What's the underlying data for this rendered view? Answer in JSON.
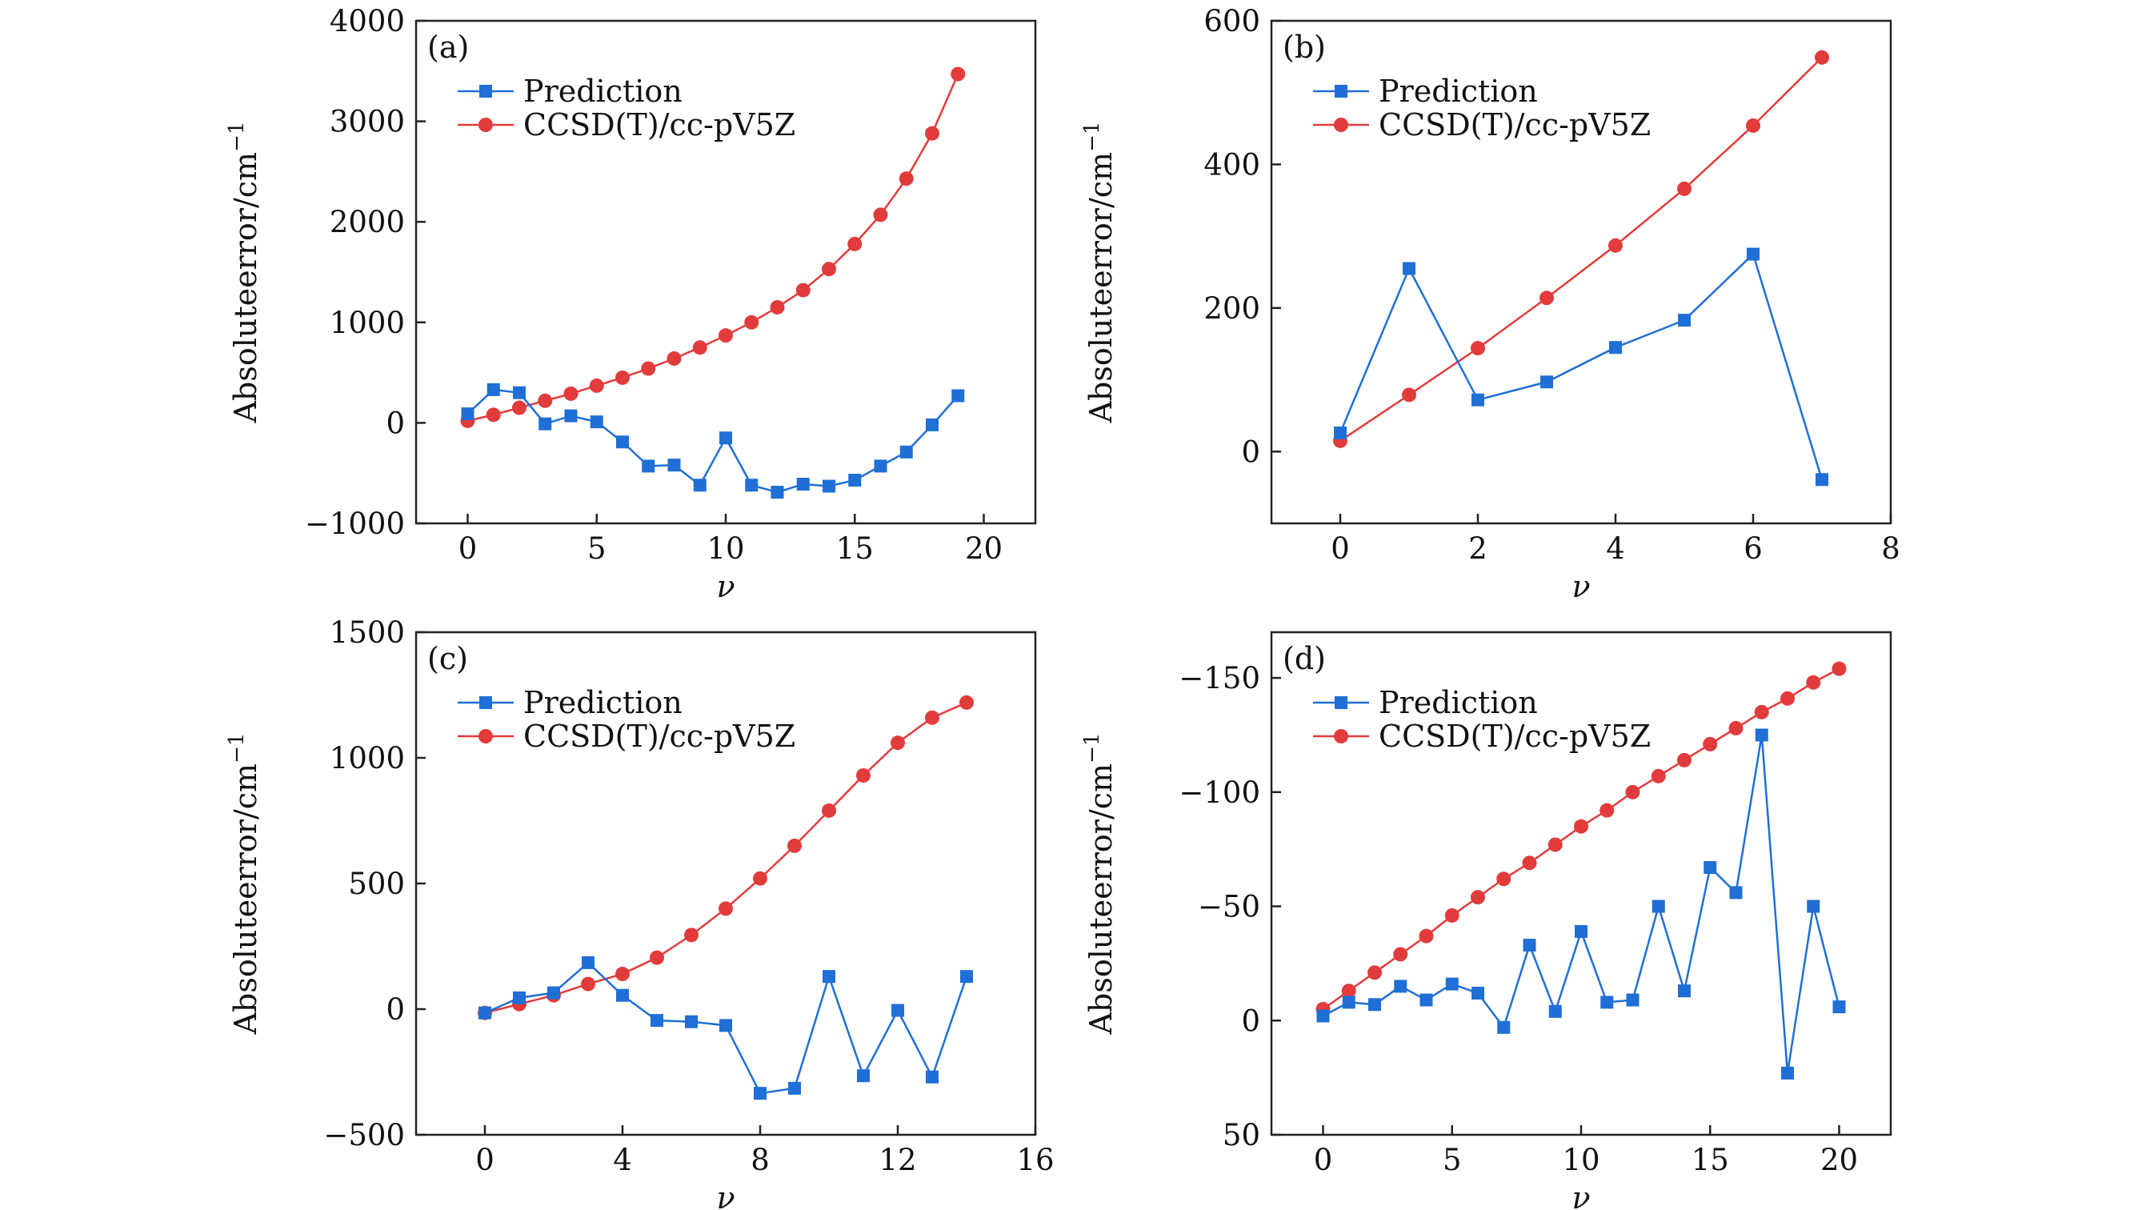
{
  "figure": {
    "colors": {
      "prediction": "#1f6fd6",
      "ccsd": "#e23b3b",
      "axis": "#222222"
    },
    "legend": {
      "prediction": "Prediction",
      "ccsd": "CCSD(T)/cc-pV5Z"
    }
  },
  "chart_data": [
    {
      "id": "a",
      "type": "line",
      "panel_label": "(a)",
      "xlabel": "ν",
      "ylabel": "Absoluteerror/cm",
      "ylabel_sup": "−1",
      "xlim": [
        -2,
        22
      ],
      "ylim": [
        -1000,
        4000
      ],
      "y_reversed": false,
      "xticks": [
        0,
        5,
        10,
        15,
        20
      ],
      "xtick_labels": [
        "0",
        "5",
        "10",
        "15",
        "20"
      ],
      "yticks": [
        -1000,
        0,
        1000,
        2000,
        3000,
        4000
      ],
      "ytick_labels": [
        "−1000",
        "0",
        "1000",
        "2000",
        "3000",
        "4000"
      ],
      "series": [
        {
          "name": "Prediction",
          "marker": "square",
          "x": [
            0,
            1,
            2,
            3,
            4,
            5,
            6,
            7,
            8,
            9,
            10,
            11,
            12,
            13,
            14,
            15,
            16,
            17,
            18,
            19
          ],
          "values": [
            90,
            330,
            300,
            -10,
            70,
            10,
            -190,
            -430,
            -420,
            -620,
            -150,
            -620,
            -690,
            -610,
            -630,
            -570,
            -430,
            -290,
            -20,
            270
          ]
        },
        {
          "name": "CCSD(T)/cc-pV5Z",
          "marker": "circle",
          "x": [
            0,
            1,
            2,
            3,
            4,
            5,
            6,
            7,
            8,
            9,
            10,
            11,
            12,
            13,
            14,
            15,
            16,
            17,
            18,
            19
          ],
          "values": [
            20,
            80,
            150,
            220,
            290,
            370,
            450,
            540,
            640,
            750,
            870,
            1000,
            1150,
            1320,
            1530,
            1780,
            2070,
            2430,
            2880,
            3470
          ]
        }
      ]
    },
    {
      "id": "b",
      "type": "line",
      "panel_label": "(b)",
      "xlabel": "ν",
      "ylabel": "Absoluteerror/cm",
      "ylabel_sup": "−1",
      "xlim": [
        -1,
        8
      ],
      "ylim": [
        -100,
        600
      ],
      "y_reversed": false,
      "xticks": [
        0,
        2,
        4,
        6,
        8
      ],
      "xtick_labels": [
        "0",
        "2",
        "4",
        "6",
        "8"
      ],
      "yticks": [
        0,
        200,
        400,
        600
      ],
      "ytick_labels": [
        "0",
        "200",
        "400",
        "600"
      ],
      "series": [
        {
          "name": "Prediction",
          "marker": "square",
          "x": [
            0,
            1,
            2,
            3,
            4,
            5,
            6,
            7
          ],
          "values": [
            26,
            255,
            72,
            97,
            145,
            183,
            275,
            -39
          ]
        },
        {
          "name": "CCSD(T)/cc-pV5Z",
          "marker": "circle",
          "x": [
            0,
            1,
            2,
            3,
            4,
            5,
            6,
            7
          ],
          "values": [
            15,
            79,
            144,
            214,
            287,
            366,
            454,
            549
          ]
        }
      ]
    },
    {
      "id": "c",
      "type": "line",
      "panel_label": "(c)",
      "xlabel": "ν",
      "ylabel": "Absoluteerror/cm",
      "ylabel_sup": "−1",
      "xlim": [
        -2,
        16
      ],
      "ylim": [
        -500,
        1500
      ],
      "y_reversed": false,
      "xticks": [
        0,
        4,
        8,
        12,
        16
      ],
      "xtick_labels": [
        "0",
        "4",
        "8",
        "12",
        "16"
      ],
      "yticks": [
        -500,
        0,
        500,
        1000,
        1500
      ],
      "ytick_labels": [
        "−500",
        "0",
        "500",
        "1000",
        "1500"
      ],
      "series": [
        {
          "name": "Prediction",
          "marker": "square",
          "x": [
            0,
            1,
            2,
            3,
            4,
            5,
            6,
            7,
            8,
            9,
            10,
            11,
            12,
            13,
            14
          ],
          "values": [
            -15,
            45,
            65,
            185,
            55,
            -45,
            -50,
            -65,
            -335,
            -315,
            130,
            -265,
            -5,
            -270,
            130
          ]
        },
        {
          "name": "CCSD(T)/cc-pV5Z",
          "marker": "circle",
          "x": [
            0,
            1,
            2,
            3,
            4,
            5,
            6,
            7,
            8,
            9,
            10,
            11,
            12,
            13,
            14
          ],
          "values": [
            -15,
            20,
            55,
            100,
            140,
            205,
            295,
            400,
            520,
            650,
            790,
            930,
            1060,
            1160,
            1220
          ]
        }
      ]
    },
    {
      "id": "d",
      "type": "line",
      "panel_label": "(d)",
      "xlabel": "ν",
      "ylabel": "Absoluteerror/cm",
      "ylabel_sup": "−1",
      "xlim": [
        -2,
        22
      ],
      "ylim": [
        50,
        -170
      ],
      "y_reversed": true,
      "xticks": [
        0,
        5,
        10,
        15,
        20
      ],
      "xtick_labels": [
        "0",
        "5",
        "10",
        "15",
        "20"
      ],
      "yticks": [
        -150,
        -100,
        -50,
        0,
        50
      ],
      "ytick_labels": [
        "−150",
        "−100",
        "−50",
        "0",
        "50"
      ],
      "series": [
        {
          "name": "Prediction",
          "marker": "square",
          "x": [
            0,
            1,
            2,
            3,
            4,
            5,
            6,
            7,
            8,
            9,
            10,
            11,
            12,
            13,
            14,
            15,
            16,
            17,
            18,
            19,
            20
          ],
          "values": [
            -2,
            -8,
            -7,
            -15,
            -9,
            -16,
            -12,
            3,
            -33,
            -4,
            -39,
            -8,
            -9,
            -50,
            -13,
            -67,
            -56,
            -125,
            23,
            -50,
            -6
          ]
        },
        {
          "name": "CCSD(T)/cc-pV5Z",
          "marker": "circle",
          "x": [
            0,
            1,
            2,
            3,
            4,
            5,
            6,
            7,
            8,
            9,
            10,
            11,
            12,
            13,
            14,
            15,
            16,
            17,
            18,
            19,
            20
          ],
          "values": [
            -5,
            -13,
            -21,
            -29,
            -37,
            -46,
            -54,
            -62,
            -69,
            -77,
            -85,
            -92,
            -100,
            -107,
            -114,
            -121,
            -128,
            -135,
            -141,
            -148,
            -154
          ]
        }
      ]
    }
  ]
}
